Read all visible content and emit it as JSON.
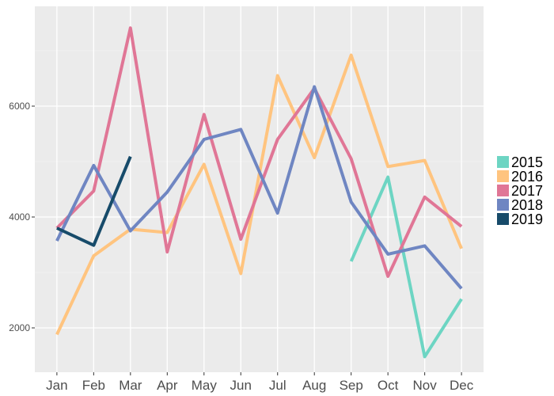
{
  "chart_data": {
    "type": "line",
    "categories": [
      "Jan",
      "Feb",
      "Mar",
      "Apr",
      "May",
      "Jun",
      "Jul",
      "Aug",
      "Sep",
      "Oct",
      "Nov",
      "Dec"
    ],
    "ylim": [
      1200,
      7800
    ],
    "yticks": [
      2000,
      4000,
      6000
    ],
    "grid": true,
    "legend_position": "right",
    "series": [
      {
        "name": "2015",
        "color": "#6dd5c3",
        "values": [
          null,
          null,
          null,
          null,
          null,
          null,
          null,
          null,
          3200,
          4720,
          1480,
          2520
        ]
      },
      {
        "name": "2016",
        "color": "#ffc47f",
        "values": [
          1880,
          3300,
          3780,
          3720,
          4950,
          2980,
          6550,
          5070,
          6920,
          4910,
          5020,
          3430
        ]
      },
      {
        "name": "2017",
        "color": "#e07696",
        "values": [
          3800,
          4470,
          7410,
          3370,
          5850,
          3600,
          5400,
          6320,
          5050,
          2930,
          4360,
          3830
        ]
      },
      {
        "name": "2018",
        "color": "#6f86c2",
        "values": [
          3570,
          4930,
          3750,
          4450,
          5400,
          5580,
          4070,
          6350,
          4270,
          3330,
          3480,
          2710
        ]
      },
      {
        "name": "2019",
        "color": "#174b6a",
        "values": [
          3800,
          3490,
          5090,
          null,
          null,
          null,
          null,
          null,
          null,
          null,
          null,
          null
        ]
      }
    ]
  }
}
